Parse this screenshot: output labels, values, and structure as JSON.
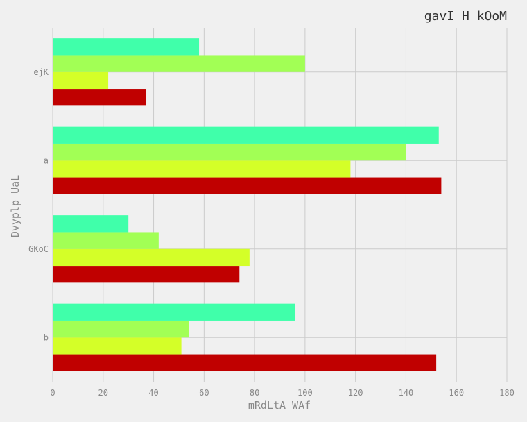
{
  "chart_data": {
    "type": "bar",
    "orientation": "horizontal",
    "title": "gavI H kOoM",
    "xlabel": "mRdLtA WAf",
    "ylabel": "Dvyplp UaL",
    "categories": [
      "b",
      "GKoC",
      "a",
      "ejK"
    ],
    "xlim": [
      0,
      180
    ],
    "xticks": [
      0,
      20,
      40,
      60,
      80,
      100,
      120,
      140,
      160,
      180
    ],
    "grid": true,
    "series": [
      {
        "color": "#c00000",
        "values": [
          152,
          74,
          154,
          37
        ]
      },
      {
        "color": "#d4ff28",
        "values": [
          51,
          78,
          118,
          22
        ]
      },
      {
        "color": "#a2ff55",
        "values": [
          54,
          42,
          140,
          100
        ]
      },
      {
        "color": "#40ffaa",
        "values": [
          96,
          30,
          153,
          58
        ]
      }
    ]
  }
}
